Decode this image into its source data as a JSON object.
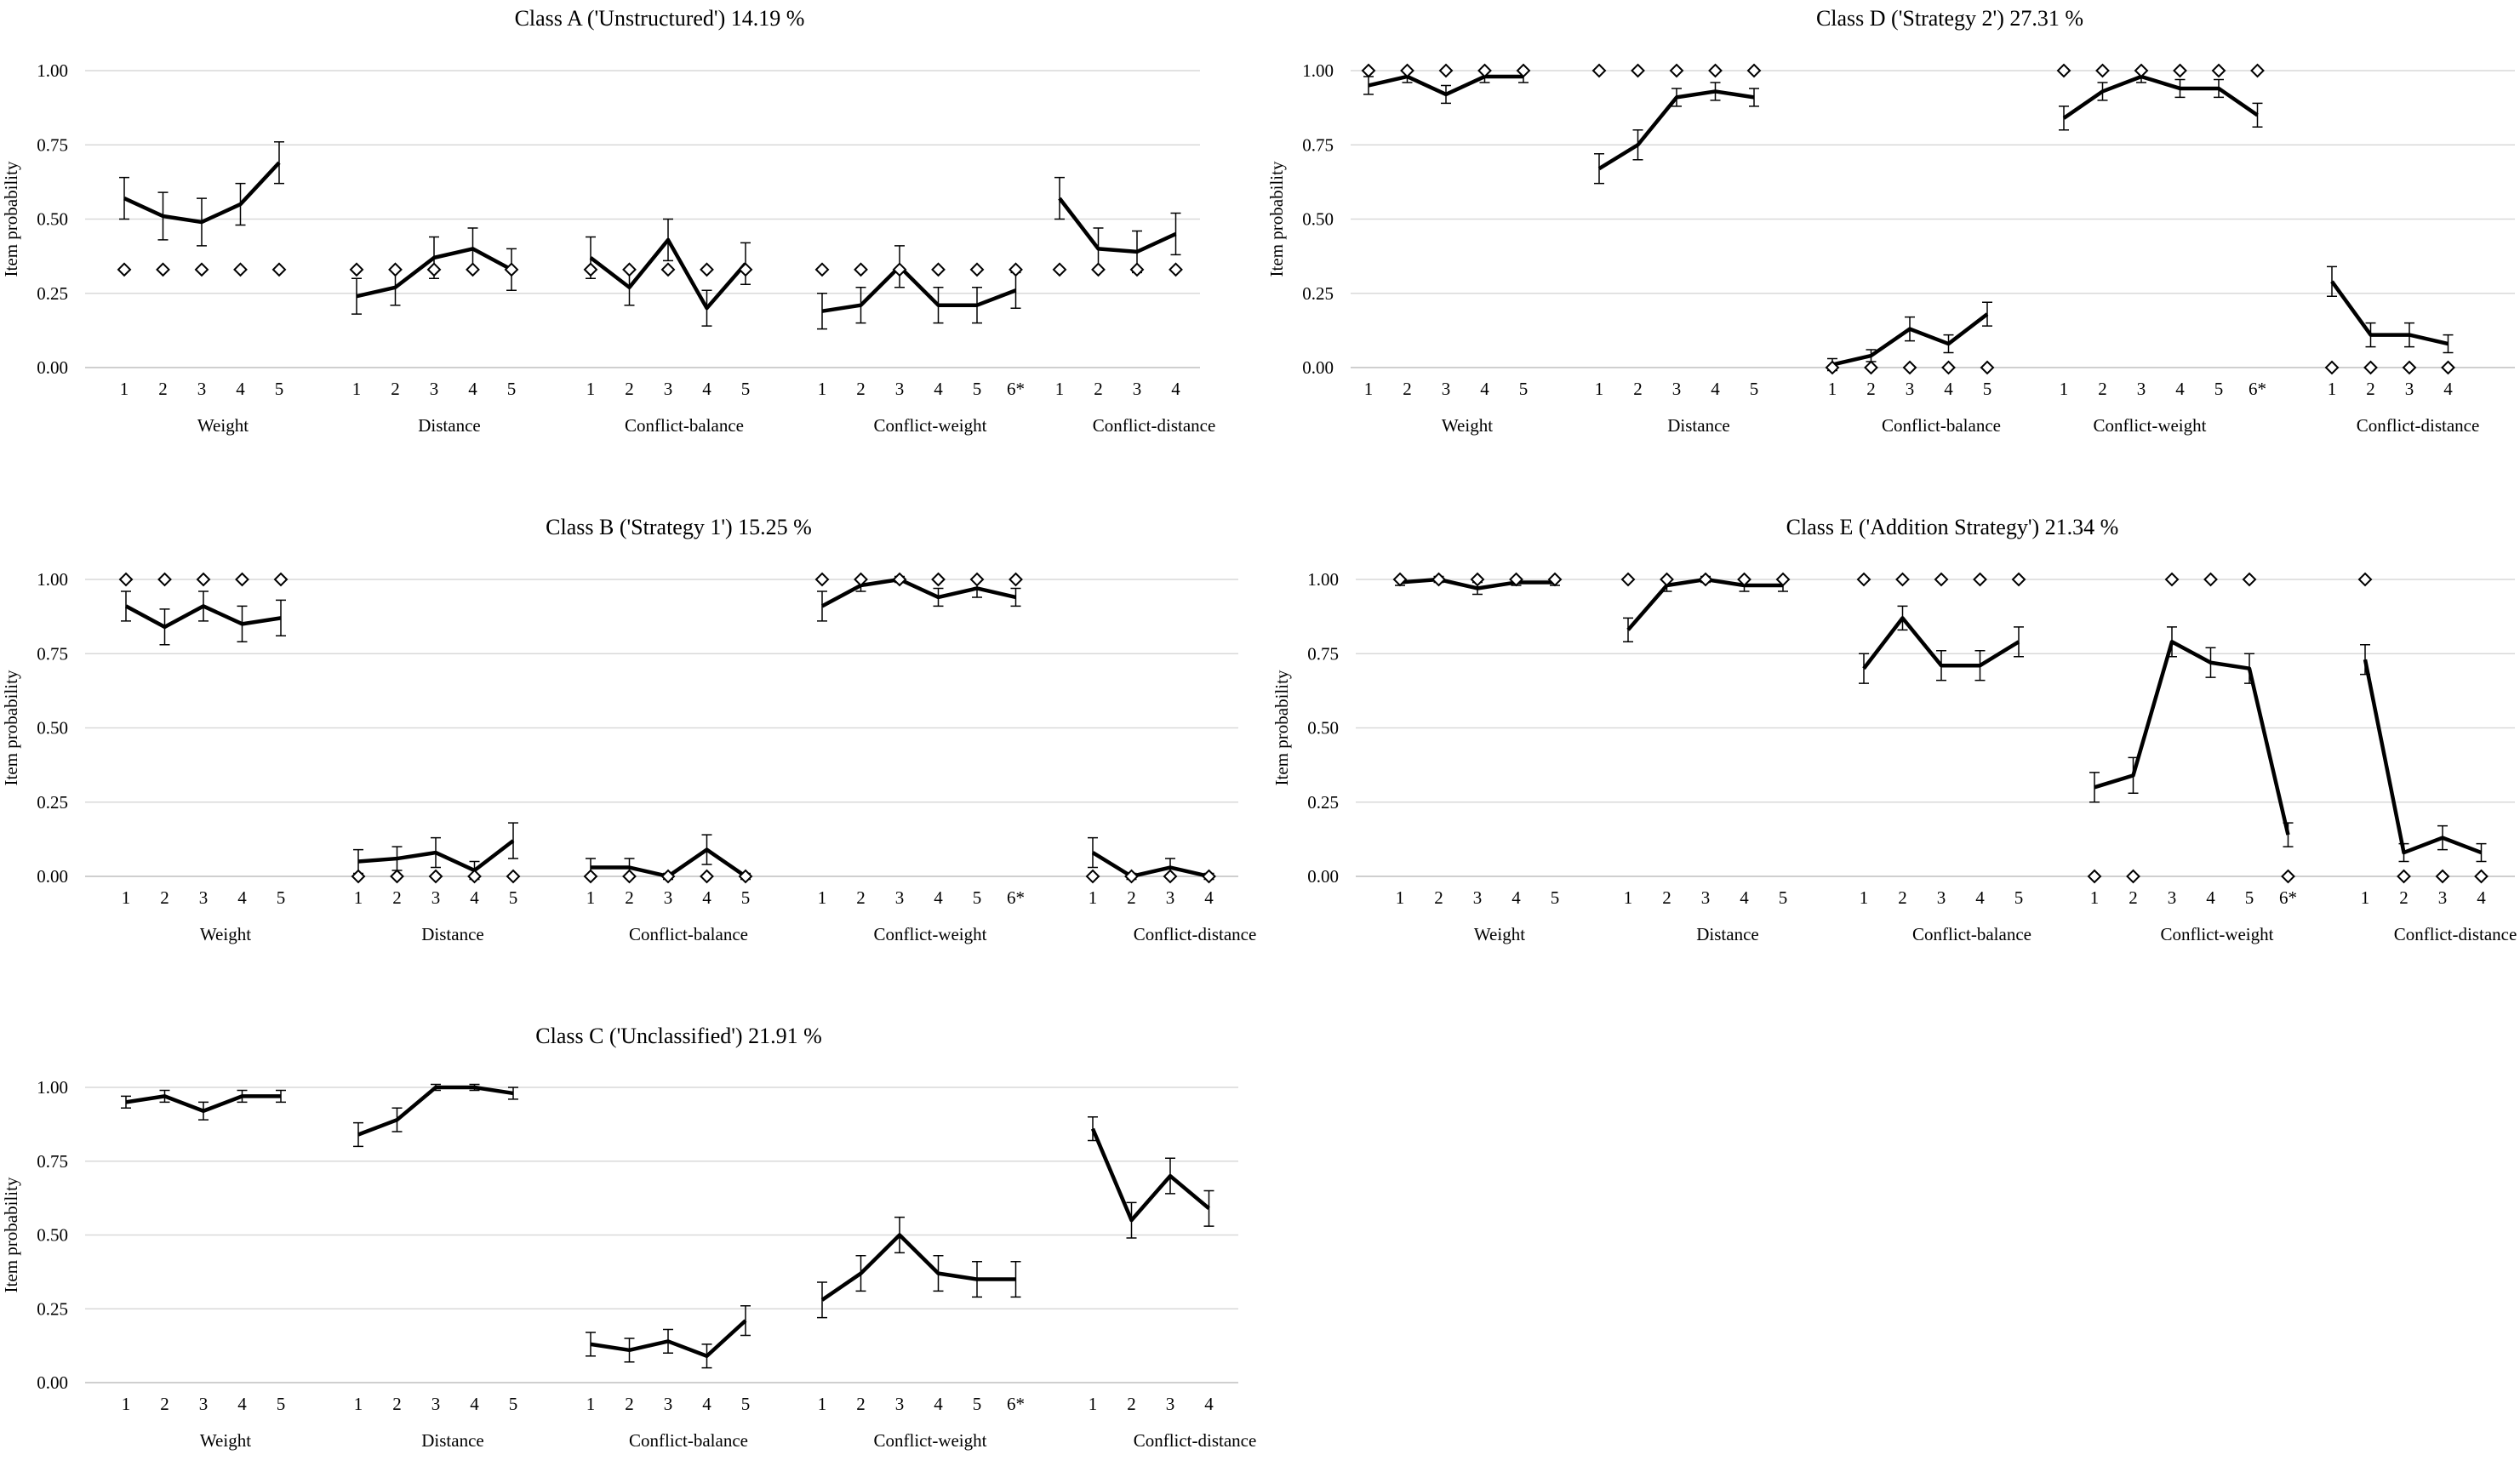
{
  "figure": {
    "y_axis_label": "Item probability",
    "groups": [
      "Weight",
      "Distance",
      "Conflict-balance",
      "Conflict-weight",
      "Conflict-distance"
    ],
    "item_labels": [
      [
        "1",
        "2",
        "3",
        "4",
        "5"
      ],
      [
        "1",
        "2",
        "3",
        "4",
        "5"
      ],
      [
        "1",
        "2",
        "3",
        "4",
        "5"
      ],
      [
        "1",
        "2",
        "3",
        "4",
        "5",
        "6*"
      ],
      [
        "1",
        "2",
        "3",
        "4"
      ]
    ],
    "y_ticks": [
      "0.00",
      "0.25",
      "0.50",
      "0.75",
      "1.00"
    ]
  },
  "chart_data": [
    {
      "type": "line",
      "title": "Class A ('Unstructured') 14.19 %",
      "ylabel": "Item probability",
      "ylim": [
        0,
        1
      ],
      "series": [
        {
          "name": "Weight",
          "categories": [
            "1",
            "2",
            "3",
            "4",
            "5"
          ],
          "values": [
            0.57,
            0.51,
            0.49,
            0.55,
            0.69
          ],
          "errors": [
            0.07,
            0.08,
            0.08,
            0.07,
            0.07
          ],
          "expected": [
            0.33,
            0.33,
            0.33,
            0.33,
            0.33
          ]
        },
        {
          "name": "Distance",
          "categories": [
            "1",
            "2",
            "3",
            "4",
            "5"
          ],
          "values": [
            0.24,
            0.27,
            0.37,
            0.4,
            0.33
          ],
          "errors": [
            0.06,
            0.06,
            0.07,
            0.07,
            0.07
          ],
          "expected": [
            0.33,
            0.33,
            0.33,
            0.33,
            0.33
          ]
        },
        {
          "name": "Conflict-balance",
          "categories": [
            "1",
            "2",
            "3",
            "4",
            "5"
          ],
          "values": [
            0.37,
            0.27,
            0.43,
            0.2,
            0.35
          ],
          "errors": [
            0.07,
            0.06,
            0.07,
            0.06,
            0.07
          ],
          "expected": [
            0.33,
            0.33,
            0.33,
            0.33,
            0.33
          ]
        },
        {
          "name": "Conflict-weight",
          "categories": [
            "1",
            "2",
            "3",
            "4",
            "5",
            "6*"
          ],
          "values": [
            0.19,
            0.21,
            0.34,
            0.21,
            0.21,
            0.26
          ],
          "errors": [
            0.06,
            0.06,
            0.07,
            0.06,
            0.06,
            0.06
          ],
          "expected": [
            0.33,
            0.33,
            0.33,
            0.33,
            0.33,
            0.33
          ]
        },
        {
          "name": "Conflict-distance",
          "categories": [
            "1",
            "2",
            "3",
            "4"
          ],
          "values": [
            0.57,
            0.4,
            0.39,
            0.45
          ],
          "errors": [
            0.07,
            0.07,
            0.07,
            0.07
          ],
          "expected": [
            0.33,
            0.33,
            0.33,
            0.33
          ]
        }
      ]
    },
    {
      "type": "line",
      "title": "Class D ('Strategy 2') 27.31 %",
      "ylabel": "Item probability",
      "ylim": [
        0,
        1
      ],
      "series": [
        {
          "name": "Weight",
          "categories": [
            "1",
            "2",
            "3",
            "4",
            "5"
          ],
          "values": [
            0.95,
            0.98,
            0.92,
            0.98,
            0.98
          ],
          "errors": [
            0.03,
            0.02,
            0.03,
            0.02,
            0.02
          ],
          "expected": [
            1,
            1,
            1,
            1,
            1
          ]
        },
        {
          "name": "Distance",
          "categories": [
            "1",
            "2",
            "3",
            "4",
            "5"
          ],
          "values": [
            0.67,
            0.75,
            0.91,
            0.93,
            0.91
          ],
          "errors": [
            0.05,
            0.05,
            0.03,
            0.03,
            0.03
          ],
          "expected": [
            1,
            1,
            1,
            1,
            1
          ]
        },
        {
          "name": "Conflict-balance",
          "categories": [
            "1",
            "2",
            "3",
            "4",
            "5"
          ],
          "values": [
            0.01,
            0.04,
            0.13,
            0.08,
            0.18
          ],
          "errors": [
            0.02,
            0.02,
            0.04,
            0.03,
            0.04
          ],
          "expected": [
            0,
            0,
            0,
            0,
            0
          ]
        },
        {
          "name": "Conflict-weight",
          "categories": [
            "1",
            "2",
            "3",
            "4",
            "5",
            "6*"
          ],
          "values": [
            0.84,
            0.93,
            0.98,
            0.94,
            0.94,
            0.85
          ],
          "errors": [
            0.04,
            0.03,
            0.02,
            0.03,
            0.03,
            0.04
          ],
          "expected": [
            1,
            1,
            1,
            1,
            1,
            1
          ]
        },
        {
          "name": "Conflict-distance",
          "categories": [
            "1",
            "2",
            "3",
            "4"
          ],
          "values": [
            0.29,
            0.11,
            0.11,
            0.08
          ],
          "errors": [
            0.05,
            0.04,
            0.04,
            0.03
          ],
          "expected": [
            0,
            0,
            0,
            0
          ]
        }
      ]
    },
    {
      "type": "line",
      "title": "Class B ('Strategy 1') 15.25 %",
      "ylabel": "Item probability",
      "ylim": [
        0,
        1
      ],
      "series": [
        {
          "name": "Weight",
          "categories": [
            "1",
            "2",
            "3",
            "4",
            "5"
          ],
          "values": [
            0.91,
            0.84,
            0.91,
            0.85,
            0.87
          ],
          "errors": [
            0.05,
            0.06,
            0.05,
            0.06,
            0.06
          ],
          "expected": [
            1,
            1,
            1,
            1,
            1
          ]
        },
        {
          "name": "Distance",
          "categories": [
            "1",
            "2",
            "3",
            "4",
            "5"
          ],
          "values": [
            0.05,
            0.06,
            0.08,
            0.02,
            0.12
          ],
          "errors": [
            0.04,
            0.04,
            0.05,
            0.03,
            0.06
          ],
          "expected": [
            0,
            0,
            0,
            0,
            0
          ]
        },
        {
          "name": "Conflict-balance",
          "categories": [
            "1",
            "2",
            "3",
            "4",
            "5"
          ],
          "values": [
            0.03,
            0.03,
            0.0,
            0.09,
            0.0
          ],
          "errors": [
            0.03,
            0.03,
            0.01,
            0.05,
            0.01
          ],
          "expected": [
            0,
            0,
            0,
            0,
            0
          ]
        },
        {
          "name": "Conflict-weight",
          "categories": [
            "1",
            "2",
            "3",
            "4",
            "5",
            "6*"
          ],
          "values": [
            0.91,
            0.98,
            1.0,
            0.94,
            0.97,
            0.94
          ],
          "errors": [
            0.05,
            0.02,
            0.01,
            0.03,
            0.03,
            0.03
          ],
          "expected": [
            1,
            1,
            1,
            1,
            1,
            1
          ]
        },
        {
          "name": "Conflict-distance",
          "categories": [
            "1",
            "2",
            "3",
            "4"
          ],
          "values": [
            0.08,
            0.0,
            0.03,
            0.0
          ],
          "errors": [
            0.05,
            0.01,
            0.03,
            0.01
          ],
          "expected": [
            0,
            0,
            0,
            0
          ]
        }
      ]
    },
    {
      "type": "line",
      "title": "Class E ('Addition Strategy') 21.34 %",
      "ylabel": "Item probability",
      "ylim": [
        0,
        1
      ],
      "series": [
        {
          "name": "Weight",
          "categories": [
            "1",
            "2",
            "3",
            "4",
            "5"
          ],
          "values": [
            0.99,
            1.0,
            0.97,
            0.99,
            0.99
          ],
          "errors": [
            0.01,
            0.01,
            0.02,
            0.01,
            0.01
          ],
          "expected": [
            1,
            1,
            1,
            1,
            1
          ]
        },
        {
          "name": "Distance",
          "categories": [
            "1",
            "2",
            "3",
            "4",
            "5"
          ],
          "values": [
            0.83,
            0.98,
            1.0,
            0.98,
            0.98
          ],
          "errors": [
            0.04,
            0.02,
            0.01,
            0.02,
            0.02
          ],
          "expected": [
            1,
            1,
            1,
            1,
            1
          ]
        },
        {
          "name": "Conflict-balance",
          "categories": [
            "1",
            "2",
            "3",
            "4",
            "5"
          ],
          "values": [
            0.7,
            0.87,
            0.71,
            0.71,
            0.79
          ],
          "errors": [
            0.05,
            0.04,
            0.05,
            0.05,
            0.05
          ],
          "expected": [
            1,
            1,
            1,
            1,
            1
          ]
        },
        {
          "name": "Conflict-weight",
          "categories": [
            "1",
            "2",
            "3",
            "4",
            "5",
            "6*"
          ],
          "values": [
            0.3,
            0.34,
            0.79,
            0.72,
            0.7,
            0.14
          ],
          "errors": [
            0.05,
            0.06,
            0.05,
            0.05,
            0.05,
            0.04
          ],
          "expected": [
            0,
            0,
            1,
            1,
            1,
            0
          ]
        },
        {
          "name": "Conflict-distance",
          "categories": [
            "1",
            "2",
            "3",
            "4"
          ],
          "values": [
            0.73,
            0.08,
            0.13,
            0.08
          ],
          "errors": [
            0.05,
            0.03,
            0.04,
            0.03
          ],
          "expected": [
            1,
            0,
            0,
            0
          ]
        }
      ]
    },
    {
      "type": "line",
      "title": "Class C ('Unclassified') 21.91 %",
      "ylabel": "Item probability",
      "ylim": [
        0,
        1
      ],
      "series": [
        {
          "name": "Weight",
          "categories": [
            "1",
            "2",
            "3",
            "4",
            "5"
          ],
          "values": [
            0.95,
            0.97,
            0.92,
            0.97,
            0.97
          ],
          "errors": [
            0.02,
            0.02,
            0.03,
            0.02,
            0.02
          ],
          "expected": null
        },
        {
          "name": "Distance",
          "categories": [
            "1",
            "2",
            "3",
            "4",
            "5"
          ],
          "values": [
            0.84,
            0.89,
            1.0,
            1.0,
            0.98
          ],
          "errors": [
            0.04,
            0.04,
            0.01,
            0.01,
            0.02
          ],
          "expected": null
        },
        {
          "name": "Conflict-balance",
          "categories": [
            "1",
            "2",
            "3",
            "4",
            "5"
          ],
          "values": [
            0.13,
            0.11,
            0.14,
            0.09,
            0.21
          ],
          "errors": [
            0.04,
            0.04,
            0.04,
            0.04,
            0.05
          ],
          "expected": null
        },
        {
          "name": "Conflict-weight",
          "categories": [
            "1",
            "2",
            "3",
            "4",
            "5",
            "6*"
          ],
          "values": [
            0.28,
            0.37,
            0.5,
            0.37,
            0.35,
            0.35
          ],
          "errors": [
            0.06,
            0.06,
            0.06,
            0.06,
            0.06,
            0.06
          ],
          "expected": null
        },
        {
          "name": "Conflict-distance",
          "categories": [
            "1",
            "2",
            "3",
            "4"
          ],
          "values": [
            0.86,
            0.55,
            0.7,
            0.59
          ],
          "errors": [
            0.04,
            0.06,
            0.06,
            0.06
          ],
          "expected": null
        }
      ]
    }
  ]
}
